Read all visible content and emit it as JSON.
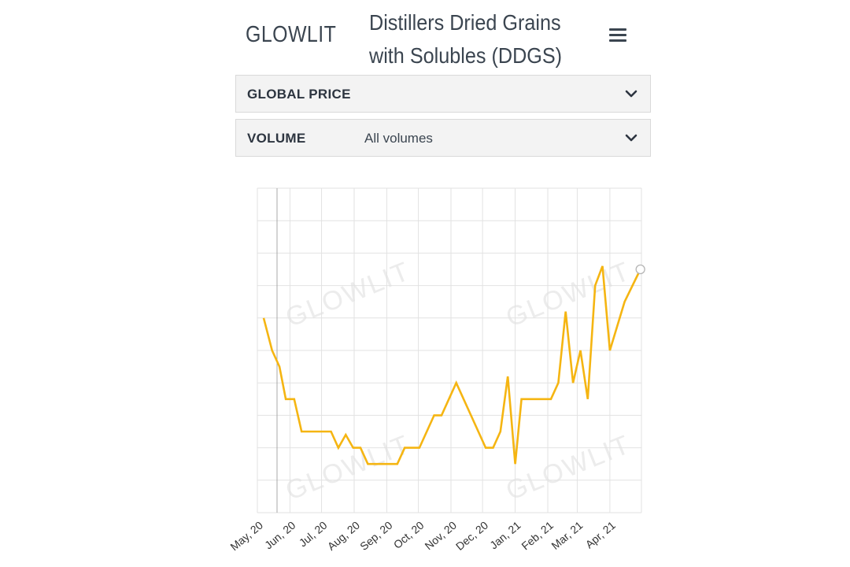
{
  "brand": {
    "name": "GLOWLIT",
    "accent": "#f0b418"
  },
  "header": {
    "title": "Distillers Dried Grains with Solubles (DDGS)",
    "menu_icon": "hamburger-menu-icon"
  },
  "filters": [
    {
      "label": "GLOBAL PRICE",
      "value": ""
    },
    {
      "label": "VOLUME",
      "value": "All volumes"
    }
  ],
  "chart_data": {
    "type": "line",
    "title": "",
    "xlabel": "",
    "ylabel": "",
    "x_tick_labels": [
      "May, 20",
      "Jun, 20",
      "Jul, 20",
      "Aug, 20",
      "Sep, 20",
      "Oct, 20",
      "Nov, 20",
      "Dec, 20",
      "Jan, 21",
      "Feb, 21",
      "Mar, 21",
      "Apr, 21"
    ],
    "y_tick_labels": [],
    "x_range": [
      "2020-05-01",
      "2021-05-01"
    ],
    "y_range": [
      0,
      10
    ],
    "grid": true,
    "series": [
      {
        "name": "",
        "color": "#f5b512",
        "points": [
          [
            "2020-05-07",
            6.0
          ],
          [
            "2020-05-15",
            5.0
          ],
          [
            "2020-05-22",
            4.5
          ],
          [
            "2020-05-28",
            3.5
          ],
          [
            "2020-06-05",
            3.5
          ],
          [
            "2020-06-12",
            2.5
          ],
          [
            "2020-06-19",
            2.5
          ],
          [
            "2020-06-26",
            2.5
          ],
          [
            "2020-07-03",
            2.5
          ],
          [
            "2020-07-10",
            2.5
          ],
          [
            "2020-07-17",
            2.0
          ],
          [
            "2020-07-24",
            2.4
          ],
          [
            "2020-07-31",
            2.0
          ],
          [
            "2020-08-07",
            2.0
          ],
          [
            "2020-08-14",
            1.5
          ],
          [
            "2020-08-21",
            1.5
          ],
          [
            "2020-08-28",
            1.5
          ],
          [
            "2020-09-04",
            1.5
          ],
          [
            "2020-09-11",
            1.5
          ],
          [
            "2020-09-18",
            2.0
          ],
          [
            "2020-09-25",
            2.0
          ],
          [
            "2020-10-02",
            2.0
          ],
          [
            "2020-10-16",
            3.0
          ],
          [
            "2020-10-23",
            3.0
          ],
          [
            "2020-11-06",
            4.0
          ],
          [
            "2020-11-20",
            3.0
          ],
          [
            "2020-12-04",
            2.0
          ],
          [
            "2020-12-11",
            2.0
          ],
          [
            "2020-12-18",
            2.5
          ],
          [
            "2020-12-25",
            4.2
          ],
          [
            "2021-01-01",
            1.5
          ],
          [
            "2021-01-07",
            3.5
          ],
          [
            "2021-01-14",
            3.5
          ],
          [
            "2021-01-21",
            3.5
          ],
          [
            "2021-01-28",
            3.5
          ],
          [
            "2021-02-04",
            3.5
          ],
          [
            "2021-02-11",
            4.0
          ],
          [
            "2021-02-18",
            6.2
          ],
          [
            "2021-02-25",
            4.0
          ],
          [
            "2021-03-04",
            5.0
          ],
          [
            "2021-03-11",
            3.5
          ],
          [
            "2021-03-18",
            7.0
          ],
          [
            "2021-03-25",
            7.6
          ],
          [
            "2021-04-01",
            5.0
          ],
          [
            "2021-04-15",
            6.5
          ],
          [
            "2021-04-30",
            7.5
          ]
        ]
      }
    ]
  }
}
